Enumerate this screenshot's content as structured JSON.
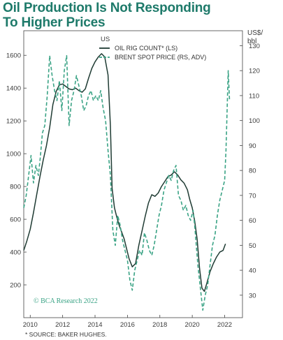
{
  "chart_data": {
    "type": "line",
    "title": "Oil Production Is Not Responding To Higher Prices",
    "title_lines": [
      "Oil Production Is Not Responding",
      "To Higher Prices"
    ],
    "left_axis": {
      "unit_label": "US",
      "range": [
        0,
        1750
      ],
      "ticks": [
        200,
        400,
        600,
        800,
        1000,
        1200,
        1400,
        1600
      ]
    },
    "right_axis": {
      "unit_label_lines": [
        "US$/",
        "bbl"
      ],
      "range": [
        21,
        136
      ],
      "ticks": [
        30,
        40,
        50,
        60,
        70,
        80,
        90,
        100,
        110,
        120,
        130
      ]
    },
    "x_axis": {
      "range": [
        2009.6,
        2023.1
      ],
      "ticks": [
        2010,
        2012,
        2014,
        2016,
        2018,
        2020,
        2022
      ],
      "tick_labels": [
        "2010",
        "2012",
        "2014",
        "2016",
        "2018",
        "2020",
        "2022"
      ]
    },
    "legend_position": "top-center",
    "grid": false,
    "watermark": "© BCA Research 2022",
    "footnote": "* SOURCE: BAKER HUGHES.",
    "series": [
      {
        "name": "OIL RIG COUNT* (LS)",
        "axis": "left",
        "color": "#1f3b33",
        "style": "solid",
        "x": [
          2009.6,
          2009.8,
          2010.0,
          2010.2,
          2010.4,
          2010.6,
          2010.8,
          2011.0,
          2011.2,
          2011.4,
          2011.6,
          2011.8,
          2012.0,
          2012.2,
          2012.4,
          2012.6,
          2012.8,
          2013.0,
          2013.2,
          2013.4,
          2013.6,
          2013.8,
          2014.0,
          2014.2,
          2014.4,
          2014.6,
          2014.8,
          2014.95,
          2015.05,
          2015.2,
          2015.35,
          2015.5,
          2015.65,
          2015.8,
          2015.95,
          2016.1,
          2016.3,
          2016.5,
          2016.7,
          2016.9,
          2017.1,
          2017.3,
          2017.5,
          2017.7,
          2017.9,
          2018.1,
          2018.3,
          2018.5,
          2018.7,
          2018.9,
          2019.1,
          2019.3,
          2019.5,
          2019.7,
          2019.85,
          2020.0,
          2020.15,
          2020.3,
          2020.45,
          2020.6,
          2020.75,
          2020.9,
          2021.1,
          2021.3,
          2021.5,
          2021.7,
          2021.9,
          2022.05
        ],
        "values": [
          410,
          470,
          540,
          640,
          750,
          860,
          960,
          1050,
          1160,
          1300,
          1380,
          1420,
          1425,
          1410,
          1395,
          1390,
          1400,
          1385,
          1375,
          1395,
          1460,
          1520,
          1560,
          1590,
          1610,
          1590,
          1480,
          1170,
          790,
          670,
          610,
          560,
          520,
          480,
          420,
          360,
          310,
          330,
          440,
          530,
          620,
          700,
          750,
          740,
          760,
          800,
          830,
          860,
          870,
          890,
          870,
          840,
          820,
          780,
          720,
          670,
          590,
          480,
          300,
          180,
          160,
          210,
          280,
          330,
          370,
          400,
          410,
          450
        ]
      },
      {
        "name": "BRENT SPOT PRICE (RS, ADV)",
        "axis": "right",
        "color": "#3aa385",
        "style": "dashed",
        "x": [
          2009.6,
          2009.75,
          2009.9,
          2010.05,
          2010.2,
          2010.35,
          2010.5,
          2010.62,
          2010.75,
          2010.9,
          2011.05,
          2011.2,
          2011.35,
          2011.5,
          2011.65,
          2011.8,
          2011.95,
          2012.1,
          2012.25,
          2012.4,
          2012.55,
          2012.7,
          2012.85,
          2013.0,
          2013.15,
          2013.3,
          2013.45,
          2013.6,
          2013.75,
          2013.9,
          2014.05,
          2014.2,
          2014.35,
          2014.5,
          2014.65,
          2014.8,
          2014.95,
          2015.1,
          2015.25,
          2015.4,
          2015.55,
          2015.7,
          2015.85,
          2016.0,
          2016.15,
          2016.3,
          2016.45,
          2016.6,
          2016.75,
          2016.9,
          2017.05,
          2017.2,
          2017.35,
          2017.5,
          2017.65,
          2017.8,
          2017.95,
          2018.1,
          2018.25,
          2018.4,
          2018.55,
          2018.7,
          2018.85,
          2019.0,
          2019.15,
          2019.3,
          2019.45,
          2019.6,
          2019.75,
          2019.9,
          2020.05,
          2020.15,
          2020.25,
          2020.35,
          2020.5,
          2020.65,
          2020.8,
          2020.95,
          2021.1,
          2021.25,
          2021.4,
          2021.55,
          2021.7,
          2021.85,
          2022.0,
          2022.08,
          2022.15,
          2022.22,
          2022.3
        ],
        "values": [
          65,
          70,
          78,
          86,
          75,
          82,
          78,
          85,
          95,
          98,
          110,
          126,
          118,
          112,
          108,
          116,
          104,
          120,
          126,
          98,
          108,
          112,
          118,
          114,
          110,
          104,
          106,
          110,
          112,
          108,
          110,
          108,
          112,
          105,
          100,
          88,
          78,
          56,
          50,
          62,
          58,
          52,
          48,
          44,
          36,
          32,
          40,
          44,
          48,
          46,
          55,
          52,
          48,
          46,
          50,
          56,
          62,
          66,
          72,
          75,
          78,
          76,
          80,
          82,
          70,
          68,
          64,
          66,
          62,
          60,
          64,
          58,
          50,
          42,
          33,
          24,
          30,
          34,
          42,
          50,
          54,
          62,
          68,
          72,
          76,
          88,
          104,
          120,
          108
        ]
      }
    ]
  }
}
